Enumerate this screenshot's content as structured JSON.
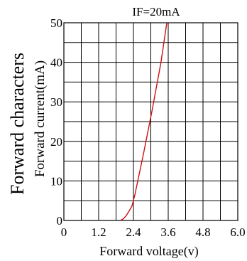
{
  "chart_data": {
    "type": "line",
    "title": "IF=20mA",
    "side_title": "Forward characters",
    "xlabel": "Forward voltage(v)",
    "ylabel": "Forward current(mA)",
    "xlim": [
      0,
      6.0
    ],
    "ylim": [
      0,
      50
    ],
    "x_ticks": [
      0,
      1.2,
      2.4,
      3.6,
      4.8,
      6.0
    ],
    "x_tick_labels": [
      "0",
      "1.2",
      "2.4",
      "3.6",
      "4.8",
      "6.0"
    ],
    "y_ticks": [
      0,
      10,
      20,
      30,
      40,
      50
    ],
    "y_tick_labels": [
      "0",
      "10",
      "20",
      "30",
      "40",
      "50"
    ],
    "grid": true,
    "grid_x_step": 0.6,
    "grid_y_step": 5,
    "series_color": "#d01010",
    "series": [
      {
        "x": [
          1.95,
          2.05,
          2.15,
          2.25,
          2.35,
          2.45,
          2.75,
          3.05,
          3.35,
          3.55
        ],
        "y": [
          0,
          0.4,
          1.2,
          2.4,
          3.7,
          6.5,
          17,
          28,
          40,
          50
        ]
      }
    ]
  }
}
